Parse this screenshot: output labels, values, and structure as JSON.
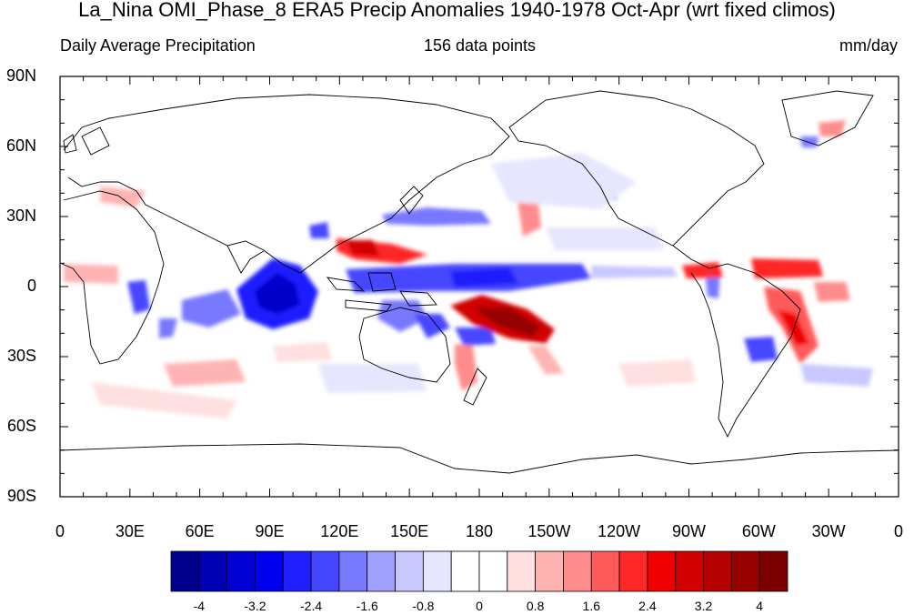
{
  "title": "La_Nina OMI_Phase_8 ERA5 Precip Anomalies 1940-1978 Oct-Apr (wrt fixed climos)",
  "subtitle": {
    "left": "Daily Average Precipitation",
    "center": "156 data points",
    "right": "mm/day"
  },
  "map": {
    "projection": "cylindrical-equidistant",
    "center_longitude": 180,
    "lat_labels": [
      "90N",
      "60N",
      "30N",
      "0",
      "30S",
      "60S",
      "90S"
    ],
    "lon_labels": [
      "0",
      "30E",
      "60E",
      "90E",
      "120E",
      "150E",
      "180",
      "150W",
      "120W",
      "90W",
      "60W",
      "30W",
      "0"
    ]
  },
  "colorbar": {
    "labels": [
      "-4",
      "-3.2",
      "-2.4",
      "-1.6",
      "-0.8",
      "0",
      "0.8",
      "1.6",
      "2.4",
      "3.2",
      "4"
    ],
    "colors": [
      "#00008c",
      "#0000b4",
      "#0000d2",
      "#0000f0",
      "#1e1eff",
      "#4646ff",
      "#7878ff",
      "#a0a0ff",
      "#c8c8ff",
      "#e6e6ff",
      "#ffffff",
      "#ffffff",
      "#ffe0e0",
      "#ffb4b4",
      "#ff8c8c",
      "#ff5a5a",
      "#ff2828",
      "#f00000",
      "#d20000",
      "#b40000",
      "#960000",
      "#7d0000"
    ]
  }
}
